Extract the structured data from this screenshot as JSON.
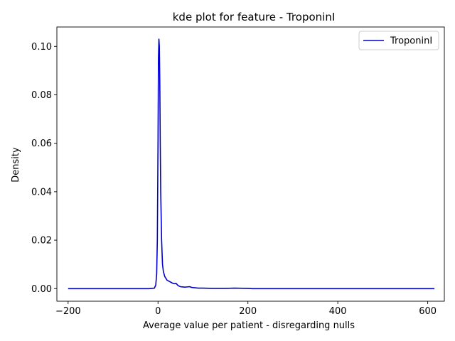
{
  "chart_data": {
    "type": "line",
    "title": "kde plot for feature -  TroponinI",
    "xlabel": "Average value per patient - disregarding nulls",
    "ylabel": "Density",
    "xlim": [
      -225,
      637
    ],
    "ylim": [
      -0.0052,
      0.108
    ],
    "xticks": [
      -200,
      0,
      200,
      400,
      600
    ],
    "xtick_labels": [
      "−200",
      "0",
      "200",
      "400",
      "600"
    ],
    "yticks": [
      0.0,
      0.02,
      0.04,
      0.06,
      0.08,
      0.1
    ],
    "ytick_labels": [
      "0.00",
      "0.02",
      "0.04",
      "0.06",
      "0.08",
      "0.10"
    ],
    "grid": false,
    "legend_position": "top-right",
    "series": [
      {
        "name": "TroponinI",
        "color": "#0000cc",
        "x": [
          -200,
          -100,
          -20,
          -8,
          -5,
          -3,
          -1.5,
          0,
          1,
          2,
          3,
          4,
          5,
          6,
          8,
          10,
          12,
          15,
          20,
          25,
          30,
          33,
          37,
          40,
          45,
          50,
          60,
          65,
          70,
          75,
          80,
          90,
          100,
          120,
          150,
          170,
          200,
          210,
          300,
          400,
          500,
          615
        ],
        "y": [
          0.0,
          0.0,
          0.0,
          0.0002,
          0.0015,
          0.006,
          0.02,
          0.06,
          0.095,
          0.103,
          0.1,
          0.085,
          0.06,
          0.04,
          0.02,
          0.01,
          0.007,
          0.005,
          0.0035,
          0.003,
          0.0025,
          0.0022,
          0.002,
          0.0022,
          0.0012,
          0.0008,
          0.0006,
          0.0007,
          0.0008,
          0.0005,
          0.0004,
          0.0002,
          0.0002,
          0.0001,
          0.0001,
          0.0002,
          0.0001,
          0.0,
          0.0,
          0.0,
          0.0,
          0.0
        ]
      }
    ]
  }
}
